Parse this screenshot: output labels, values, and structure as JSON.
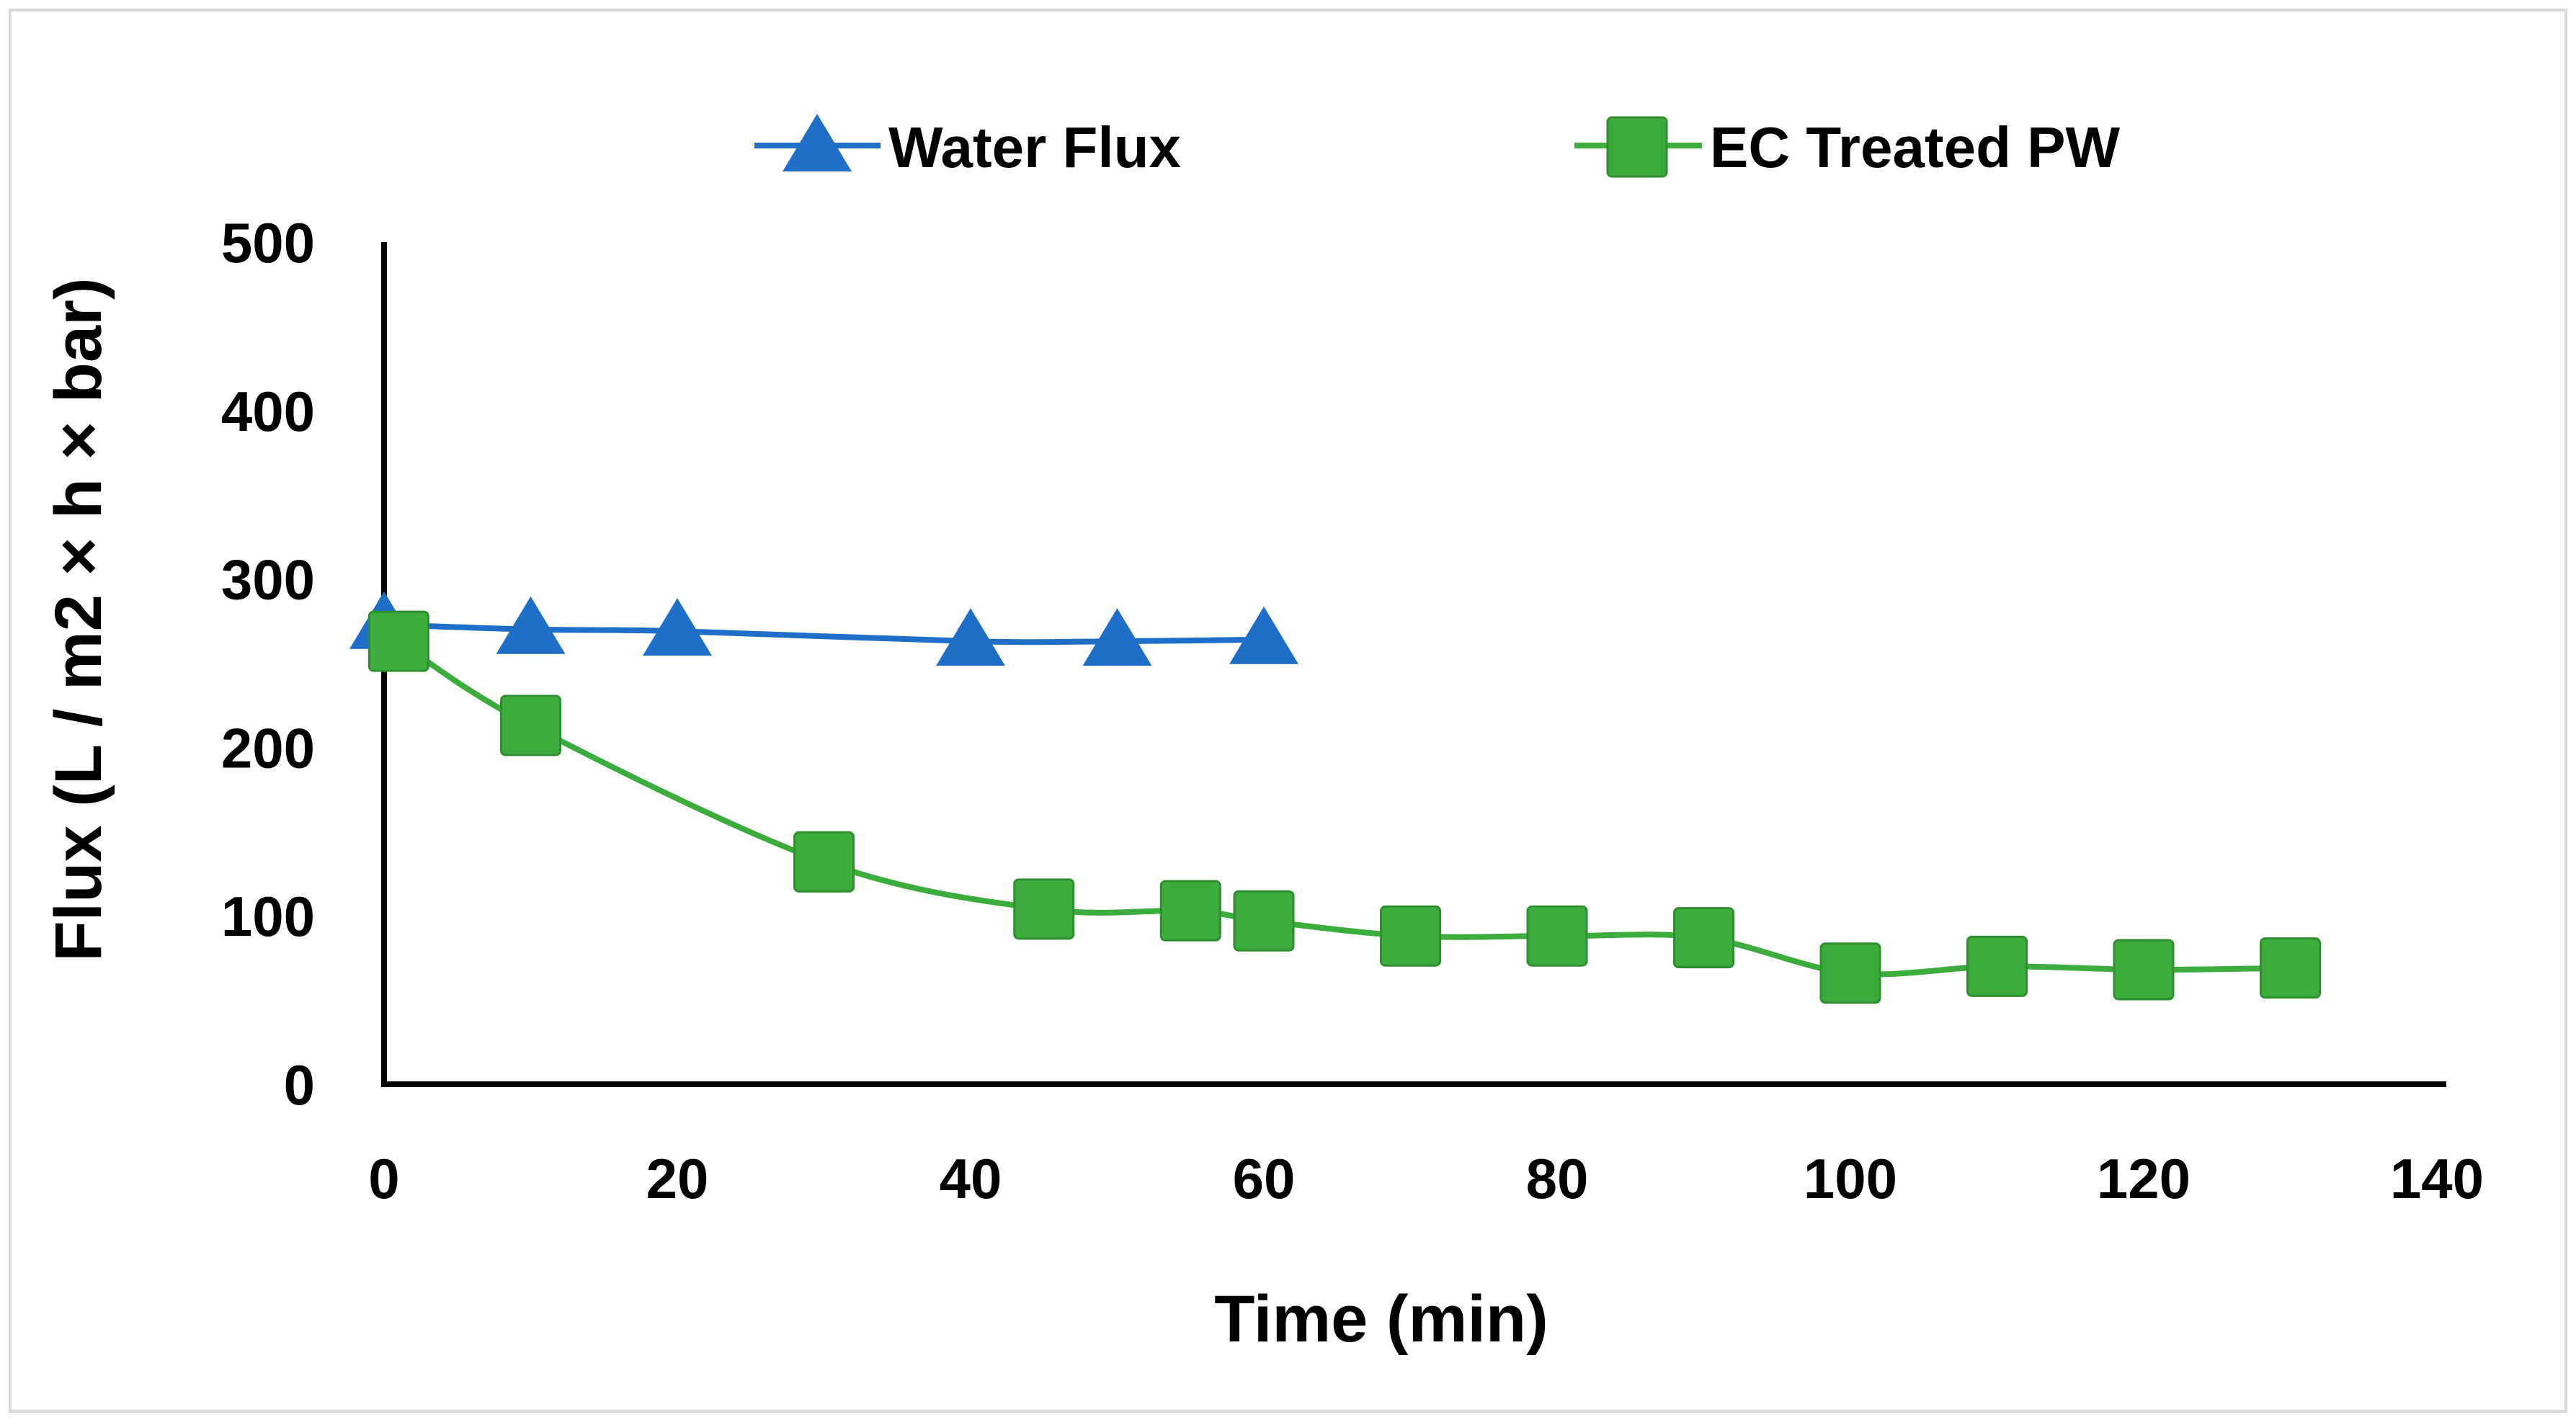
{
  "chart_data": {
    "type": "line",
    "title": "",
    "xlabel": "Time (min)",
    "ylabel": "Flux (L / m2 × h × bar)",
    "xlim": [
      0,
      140
    ],
    "ylim": [
      0,
      500
    ],
    "x_ticks": [
      0,
      20,
      40,
      60,
      80,
      100,
      120,
      140
    ],
    "y_ticks": [
      0,
      100,
      200,
      300,
      400,
      500
    ],
    "grid": false,
    "legend_position": "top-center",
    "series": [
      {
        "name": "Water Flux",
        "marker": "triangle",
        "color": "#1f6fc8",
        "x": [
          0,
          10,
          20,
          40,
          50,
          60
        ],
        "y": [
          273,
          270,
          269,
          263,
          263,
          264
        ]
      },
      {
        "name": "EC Treated PW",
        "marker": "square",
        "color": "#3cad3c",
        "x": [
          1,
          10,
          30,
          45,
          55,
          60,
          70,
          80,
          90,
          100,
          110,
          120,
          130
        ],
        "y": [
          263,
          213,
          132,
          104,
          103,
          97,
          88,
          88,
          87,
          66,
          70,
          68,
          69
        ]
      }
    ]
  }
}
